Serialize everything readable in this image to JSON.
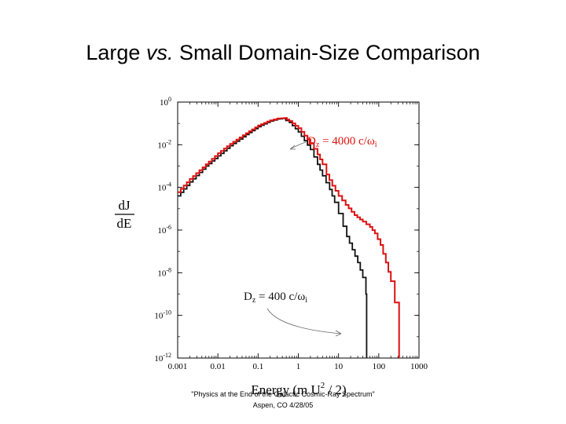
{
  "title": {
    "prefix": "Large ",
    "italic": "vs.",
    "suffix": " Small Domain-Size Comparison"
  },
  "footer": {
    "line1": "\"Physics at the End of the Galactic Cosmic-Ray Spectrum\"",
    "line2": "Aspen, CO 4/28/05"
  },
  "chart_data": {
    "type": "line",
    "xscale": "log",
    "yscale": "log",
    "xlim": [
      0.001,
      1000
    ],
    "ylim": [
      1e-12,
      1
    ],
    "x_ticks": [
      "0.001",
      "0.01",
      "0.1",
      "1",
      "10",
      "100",
      "1000"
    ],
    "y_ticks": [
      {
        "base": "10",
        "exp": "-12",
        "value": 1e-12
      },
      {
        "base": "10",
        "exp": "-10",
        "value": 1e-10
      },
      {
        "base": "10",
        "exp": "-8",
        "value": 1e-08
      },
      {
        "base": "10",
        "exp": "-6",
        "value": 1e-06
      },
      {
        "base": "10",
        "exp": "-4",
        "value": 0.0001
      },
      {
        "base": "10",
        "exp": "-2",
        "value": 0.01
      },
      {
        "base": "10",
        "exp": "0",
        "value": 1
      }
    ],
    "ylabel_num": "dJ",
    "ylabel_den": "dE",
    "xlabel": {
      "a": "Energy (m U",
      "sup": "2",
      "b": " / 2)"
    },
    "series": [
      {
        "color": "#dd1111",
        "label": {
          "a": "D",
          "sub": "z",
          "b": " = 4000 c/ω",
          "c": "i"
        },
        "points": [
          [
            0.001,
            6e-05
          ],
          [
            0.002,
            0.00025
          ],
          [
            0.005,
            0.0012
          ],
          [
            0.01,
            0.004
          ],
          [
            0.02,
            0.011
          ],
          [
            0.05,
            0.035
          ],
          [
            0.1,
            0.08
          ],
          [
            0.2,
            0.14
          ],
          [
            0.3,
            0.17
          ],
          [
            0.45,
            0.18
          ],
          [
            0.6,
            0.13
          ],
          [
            1,
            0.06
          ],
          [
            2,
            0.012
          ],
          [
            3,
            0.0035
          ],
          [
            4,
            0.0012
          ],
          [
            5,
            0.0004
          ],
          [
            7,
            0.00012
          ],
          [
            10,
            4e-05
          ],
          [
            15,
            1.5e-05
          ],
          [
            25,
            5e-06
          ],
          [
            40,
            2.5e-06
          ],
          [
            60,
            1.4e-06
          ],
          [
            80,
            7e-07
          ],
          [
            110,
            2e-07
          ],
          [
            150,
            3e-08
          ],
          [
            200,
            4e-09
          ],
          [
            250,
            4e-10
          ],
          [
            320,
            3e-11
          ],
          [
            320,
            1e-12
          ]
        ]
      },
      {
        "color": "#111111",
        "label": {
          "a": "D",
          "sub": "z",
          "b": " = 400 c/ω",
          "c": "i"
        },
        "points": [
          [
            0.001,
            4e-05
          ],
          [
            0.002,
            0.00018
          ],
          [
            0.005,
            0.001
          ],
          [
            0.01,
            0.003
          ],
          [
            0.02,
            0.009
          ],
          [
            0.05,
            0.03
          ],
          [
            0.1,
            0.07
          ],
          [
            0.2,
            0.13
          ],
          [
            0.3,
            0.16
          ],
          [
            0.4,
            0.17
          ],
          [
            0.6,
            0.11
          ],
          [
            1,
            0.04
          ],
          [
            2,
            0.006
          ],
          [
            3,
            0.0012
          ],
          [
            4,
            0.00035
          ],
          [
            6,
            8e-05
          ],
          [
            8,
            2e-05
          ],
          [
            10,
            6e-06
          ],
          [
            13,
            1.5e-06
          ],
          [
            16,
            5e-07
          ],
          [
            22,
            1.2e-07
          ],
          [
            30,
            3e-08
          ],
          [
            40,
            6e-09
          ],
          [
            48,
            1e-09
          ],
          [
            50,
            1e-12
          ]
        ]
      }
    ]
  }
}
